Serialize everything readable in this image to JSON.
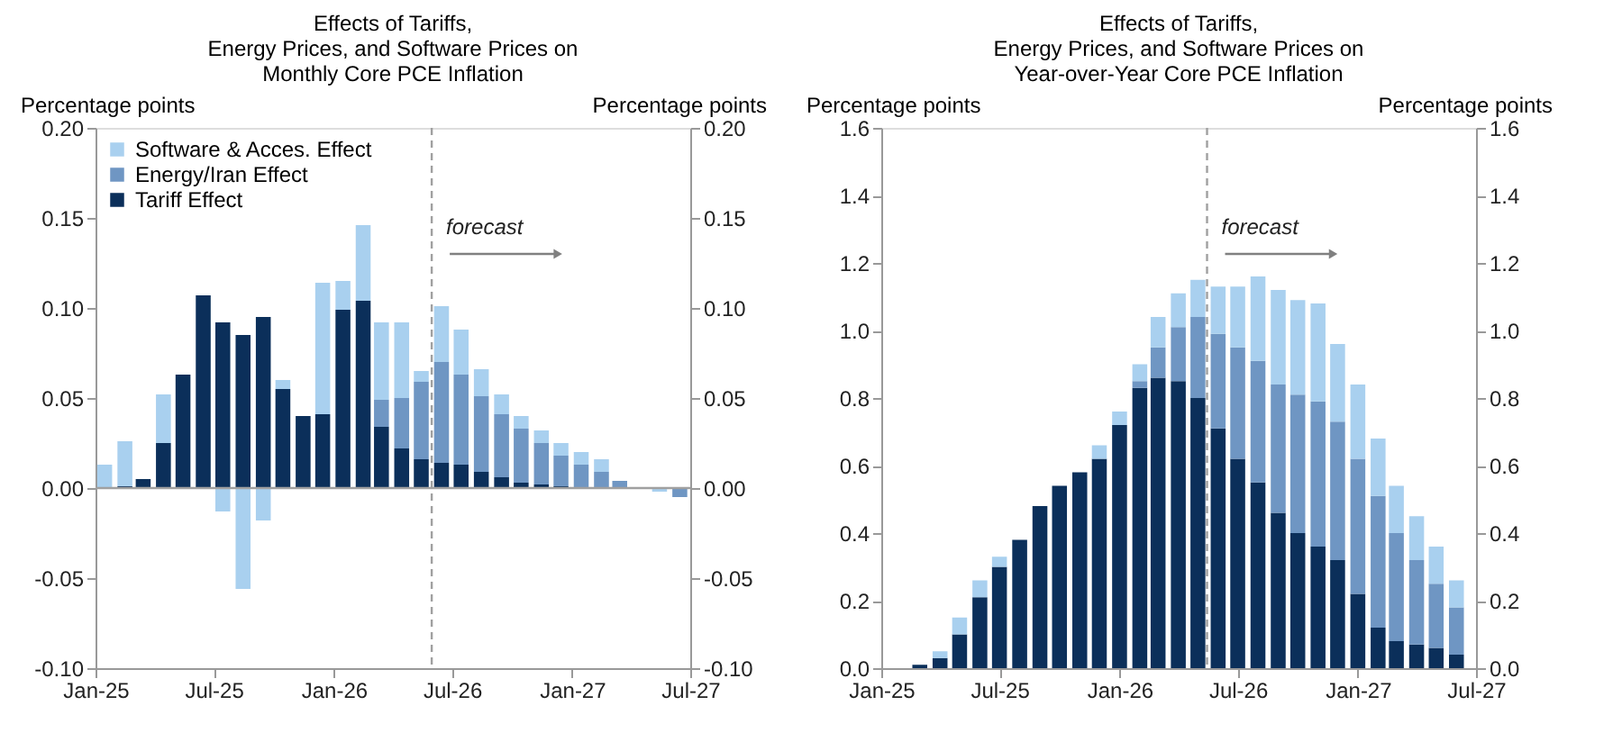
{
  "chart_data": [
    {
      "type": "bar",
      "title": "Effects of Tariffs,\nEnergy Prices, and Software Prices on\nMonthly Core PCE Inflation",
      "ylabel": "Percentage points",
      "y2label": "Percentage points",
      "stacked": true,
      "legend": "top left",
      "x": [
        "2025-01-15",
        "2025-02-15",
        "2025-03-15",
        "2025-04-15",
        "2025-05-15",
        "2025-06-15",
        "2025-07-15",
        "2025-08-15",
        "2025-09-15",
        "2025-10-15",
        "2025-11-15",
        "2025-12-15",
        "2026-01-15",
        "2026-02-15",
        "2026-03-15",
        "2026-04-15",
        "2026-05-15",
        "2026-06-15",
        "2026-07-15",
        "2026-08-15",
        "2026-09-15",
        "2026-10-15",
        "2026-11-15",
        "2026-12-15",
        "2027-01-15",
        "2027-02-15",
        "2027-03-15",
        "2027-04-15",
        "2027-05-15",
        "2027-06-15"
      ],
      "series": [
        {
          "name": "Tariff Effect",
          "color": "#0b2f5a",
          "values": [
            0,
            0.001,
            0.005,
            0.025,
            0.063,
            0.107,
            0.092,
            0.085,
            0.095,
            0.055,
            0.04,
            0.041,
            0.099,
            0.104,
            0.034,
            0.022,
            0.016,
            0.014,
            0.013,
            0.009,
            0.006,
            0.003,
            0.002,
            0.001,
            0,
            0,
            0,
            0,
            null,
            null
          ]
        },
        {
          "name": "Energy/Iran Effect",
          "color": "#6f96c3",
          "values": [
            0,
            0,
            0,
            0,
            0,
            0,
            0,
            0,
            0,
            0,
            0,
            0,
            0,
            0,
            0.015,
            0.028,
            0.043,
            0.056,
            0.05,
            0.042,
            0.035,
            0.03,
            0.023,
            0.017,
            0.013,
            0.009,
            0.004,
            null,
            null,
            -0.005
          ]
        },
        {
          "name": "Software & Acces. Effect",
          "color": "#a9d0ef",
          "values": [
            0.013,
            0.025,
            0,
            0.027,
            0,
            null,
            -0.013,
            -0.056,
            -0.018,
            0.005,
            0,
            0.073,
            0.016,
            0.042,
            0.043,
            0.042,
            0.006,
            0.031,
            0.025,
            0.015,
            0.011,
            0.007,
            0.007,
            0.007,
            0.007,
            0.007,
            0,
            0,
            -0.002,
            null
          ]
        }
      ],
      "xlim": [
        "2025-01-01",
        "2027-07-01"
      ],
      "xticks": [
        {
          "value": "2025-01-01",
          "label": "Jan-25"
        },
        {
          "value": "2025-07-01",
          "label": "Jul-25"
        },
        {
          "value": "2026-01-01",
          "label": "Jan-26"
        },
        {
          "value": "2026-07-01",
          "label": "Jul-26"
        },
        {
          "value": "2027-01-01",
          "label": "Jan-27"
        },
        {
          "value": "2027-07-01",
          "label": "Jul-27"
        }
      ],
      "ylim": [
        -0.1,
        0.2
      ],
      "yticks": [
        {
          "value": -0.1,
          "label": "-0.10"
        },
        {
          "value": -0.05,
          "label": "-0.05"
        },
        {
          "value": 0,
          "label": "0.00"
        },
        {
          "value": 0.05,
          "label": "0.05"
        },
        {
          "value": 0.1,
          "label": "0.10"
        },
        {
          "value": 0.15,
          "label": "0.15"
        },
        {
          "value": 0.2,
          "label": "0.20"
        }
      ],
      "y2lim": [
        -0.1,
        0.2
      ],
      "y2ticks": [
        {
          "value": -0.1,
          "label": "-0.10"
        },
        {
          "value": -0.05,
          "label": "-0.05"
        },
        {
          "value": 0,
          "label": "0.00"
        },
        {
          "value": 0.05,
          "label": "0.05"
        },
        {
          "value": 0.1,
          "label": "0.10"
        },
        {
          "value": 0.15,
          "label": "0.15"
        },
        {
          "value": 0.2,
          "label": "0.20"
        }
      ],
      "ref_lines": [
        {
          "axis": "x",
          "value": "2026-05-31",
          "color": "#a0a0a0",
          "line_style": "dashed"
        },
        {
          "axis": "y",
          "value": 0,
          "color": "#a0a0a0",
          "line_style": "solid"
        }
      ],
      "annotations": [
        "forecast"
      ],
      "grid": false
    },
    {
      "type": "bar",
      "title": "Effects of Tariffs,\nEnergy Prices, and Software Prices on\nYear-over-Year  Core PCE Inflation",
      "ylabel": "Percentage points",
      "y2label": "Percentage points",
      "stacked": true,
      "legend": "top left",
      "x": [
        "2025-03",
        "2025-04",
        "2025-05",
        "2025-06",
        "2025-07",
        "2025-08",
        "2025-09",
        "2025-10",
        "2025-11",
        "2025-12",
        "2026-01",
        "2026-02",
        "2026-03",
        "2026-04",
        "2026-05",
        "2026-06",
        "2026-07",
        "2026-08",
        "2026-09",
        "2026-10",
        "2026-11",
        "2026-12",
        "2027-01",
        "2027-02",
        "2027-03",
        "2027-04",
        "2027-05",
        "2027-06"
      ],
      "series": [
        {
          "name": "Tariff Effect",
          "color": "#0b2f5a",
          "values": [
            0.01,
            0.03,
            0.1,
            0.21,
            0.3,
            0.38,
            0.48,
            0.54,
            0.58,
            0.62,
            0.72,
            0.83,
            0.86,
            0.85,
            0.8,
            0.71,
            0.62,
            0.55,
            0.46,
            0.4,
            0.36,
            0.32,
            0.22,
            0.12,
            0.08,
            0.07,
            0.06,
            0.04
          ]
        },
        {
          "name": "Energy/Iran Effect",
          "color": "#6f96c3",
          "values": [
            0,
            0,
            0,
            0,
            0,
            0,
            0,
            0,
            0,
            0,
            0,
            0.02,
            0.09,
            0.16,
            0.24,
            0.28,
            0.33,
            0.36,
            0.38,
            0.41,
            0.43,
            0.41,
            0.4,
            0.39,
            0.32,
            0.25,
            0.19,
            0.14
          ]
        },
        {
          "name": "Software & Acces. Effect",
          "color": "#a9d0ef",
          "values": [
            0,
            0.02,
            0.05,
            0.05,
            0.03,
            0,
            0,
            0,
            0,
            0.04,
            0.04,
            0.05,
            0.09,
            0.1,
            0.11,
            0.14,
            0.18,
            0.25,
            0.28,
            0.28,
            0.29,
            0.23,
            0.22,
            0.17,
            0.14,
            0.13,
            0.11,
            0.08
          ]
        }
      ],
      "xlim": [
        "2025-01-01",
        "2027-07-01"
      ],
      "xticks": [
        {
          "value": "2025-01-01",
          "label": "Jan-25"
        },
        {
          "value": "2025-07-01",
          "label": "Jul-25"
        },
        {
          "value": "2026-01-01",
          "label": "Jan-26"
        },
        {
          "value": "2026-07-01",
          "label": "Jul-26"
        },
        {
          "value": "2027-01-01",
          "label": "Jan-27"
        },
        {
          "value": "2027-07-01",
          "label": "Jul-27"
        }
      ],
      "ylim": [
        0,
        1.6
      ],
      "yticks": [
        {
          "value": 0,
          "label": "0.0"
        },
        {
          "value": 0.2,
          "label": "0.2"
        },
        {
          "value": 0.4,
          "label": "0.4"
        },
        {
          "value": 0.6,
          "label": "0.6"
        },
        {
          "value": 0.8,
          "label": "0.8"
        },
        {
          "value": 1,
          "label": "1.0"
        },
        {
          "value": 1.2,
          "label": "1.2"
        },
        {
          "value": 1.4,
          "label": "1.4"
        },
        {
          "value": 1.6,
          "label": "1.6"
        }
      ],
      "y2lim": [
        0,
        1.6
      ],
      "y2ticks": [
        {
          "value": 0,
          "label": "0.0"
        },
        {
          "value": 0.2,
          "label": "0.2"
        },
        {
          "value": 0.4,
          "label": "0.4"
        },
        {
          "value": 0.6,
          "label": "0.6"
        },
        {
          "value": 0.8,
          "label": "0.8"
        },
        {
          "value": 1,
          "label": "1.0"
        },
        {
          "value": 1.2,
          "label": "1.2"
        },
        {
          "value": 1.4,
          "label": "1.4"
        },
        {
          "value": 1.6,
          "label": "1.6"
        }
      ],
      "ref_lines": [
        {
          "axis": "x",
          "value": "2026-05-15",
          "color": "#a0a0a0",
          "line_style": "dashed"
        }
      ],
      "annotations": [
        "forecast"
      ],
      "grid": false
    }
  ]
}
